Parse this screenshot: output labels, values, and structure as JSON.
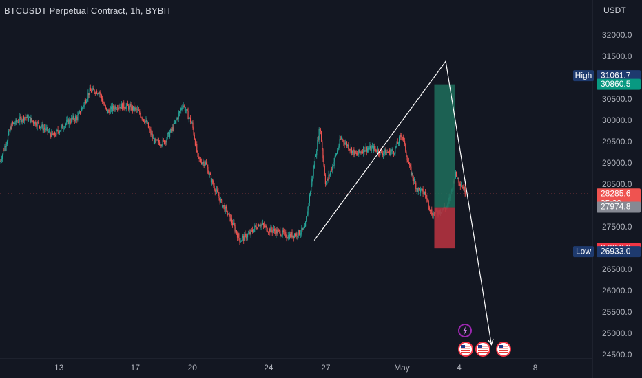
{
  "header": {
    "title": "BTCUSDT Perpetual Contract, 1h, BYBIT",
    "currency": "USDT"
  },
  "colors": {
    "background": "#131722",
    "up": "#26a69a",
    "down": "#ef5350",
    "profit_zone": "#1f6f5c",
    "loss_zone": "#b4323f",
    "line": "#ffffff",
    "label_bg": "#1e3a6e"
  },
  "chart_data": {
    "type": "candlestick",
    "symbol": "BTCUSDT",
    "timeframe": "1h",
    "exchange": "BYBIT",
    "ylim": [
      24250,
      32500
    ],
    "y_ticks": [
      32000,
      31500,
      30500,
      30000,
      29500,
      29000,
      28500,
      27500,
      26500,
      26000,
      25500,
      25000,
      24500
    ],
    "y_tick_labels": [
      "32000.0",
      "31500.0",
      "30500.0",
      "30000.0",
      "29500.0",
      "29000.0",
      "28500.0",
      "27500.0",
      "26500.0",
      "26000.0",
      "25500.0",
      "25000.0",
      "24500.0"
    ],
    "x_tick_labels": [
      "13",
      "17",
      "20",
      "24",
      "27",
      "May",
      "4",
      "8"
    ],
    "x_ticks_days": [
      0,
      4,
      7,
      11,
      14,
      18,
      21,
      25
    ],
    "x_range_days": [
      -3.1,
      28.0
    ],
    "series": [
      {
        "name": "",
        "type": "close_path",
        "points": [
          [
            -3.1,
            29050
          ],
          [
            -2.5,
            29900
          ],
          [
            -1.8,
            30100
          ],
          [
            -1.0,
            29900
          ],
          [
            -0.3,
            29650
          ],
          [
            0.5,
            30000
          ],
          [
            1.0,
            30100
          ],
          [
            1.6,
            30700
          ],
          [
            2.1,
            30700
          ],
          [
            2.5,
            30200
          ],
          [
            3.0,
            30350
          ],
          [
            3.5,
            30350
          ],
          [
            4.1,
            30250
          ],
          [
            4.6,
            29950
          ],
          [
            5.0,
            29500
          ],
          [
            5.5,
            29500
          ],
          [
            6.0,
            29850
          ],
          [
            6.5,
            30400
          ],
          [
            7.0,
            29900
          ],
          [
            7.3,
            29100
          ],
          [
            7.7,
            29000
          ],
          [
            8.0,
            28600
          ],
          [
            8.5,
            28100
          ],
          [
            9.0,
            27700
          ],
          [
            9.5,
            27200
          ],
          [
            10.0,
            27350
          ],
          [
            10.5,
            27600
          ],
          [
            11.0,
            27450
          ],
          [
            11.5,
            27400
          ],
          [
            12.0,
            27300
          ],
          [
            12.5,
            27350
          ],
          [
            12.9,
            27450
          ],
          [
            13.3,
            28700
          ],
          [
            13.7,
            29900
          ],
          [
            14.0,
            28500
          ],
          [
            14.4,
            29000
          ],
          [
            14.8,
            29600
          ],
          [
            15.2,
            29400
          ],
          [
            15.6,
            29200
          ],
          [
            16.0,
            29350
          ],
          [
            16.5,
            29350
          ],
          [
            17.0,
            29250
          ],
          [
            17.6,
            29300
          ],
          [
            18.0,
            29700
          ],
          [
            18.4,
            28900
          ],
          [
            18.8,
            28400
          ],
          [
            19.2,
            28300
          ],
          [
            19.6,
            27800
          ],
          [
            20.0,
            27900
          ],
          [
            20.4,
            28000
          ],
          [
            20.8,
            28750
          ],
          [
            21.2,
            28450
          ],
          [
            21.4,
            28280
          ]
        ]
      }
    ],
    "current_price": {
      "value": 28285.6,
      "label": "28285.6",
      "countdown": "35:29"
    },
    "price_tags": [
      {
        "label": "31061.7",
        "tag": "High",
        "value": 31061.7
      },
      {
        "label": "30860.5",
        "value": 30860.5
      },
      {
        "label": "27974.8",
        "value": 27974.8
      },
      {
        "label": "27013.3",
        "value": 27013.3
      },
      {
        "label": "26933.0",
        "tag": "Low",
        "value": 26933.0
      }
    ],
    "position": {
      "entry": 27974.8,
      "target": 30860.5,
      "stop": 27013.3,
      "x_start_days": 19.7,
      "x_end_days": 20.8
    },
    "projection": {
      "points": [
        [
          13.4,
          27200
        ],
        [
          20.3,
          31400
        ],
        [
          22.7,
          24750
        ]
      ]
    },
    "events": {
      "lightning_icon": "lightning-icon",
      "flag_icon": "us-flag-icon",
      "flag_count": 3
    }
  }
}
